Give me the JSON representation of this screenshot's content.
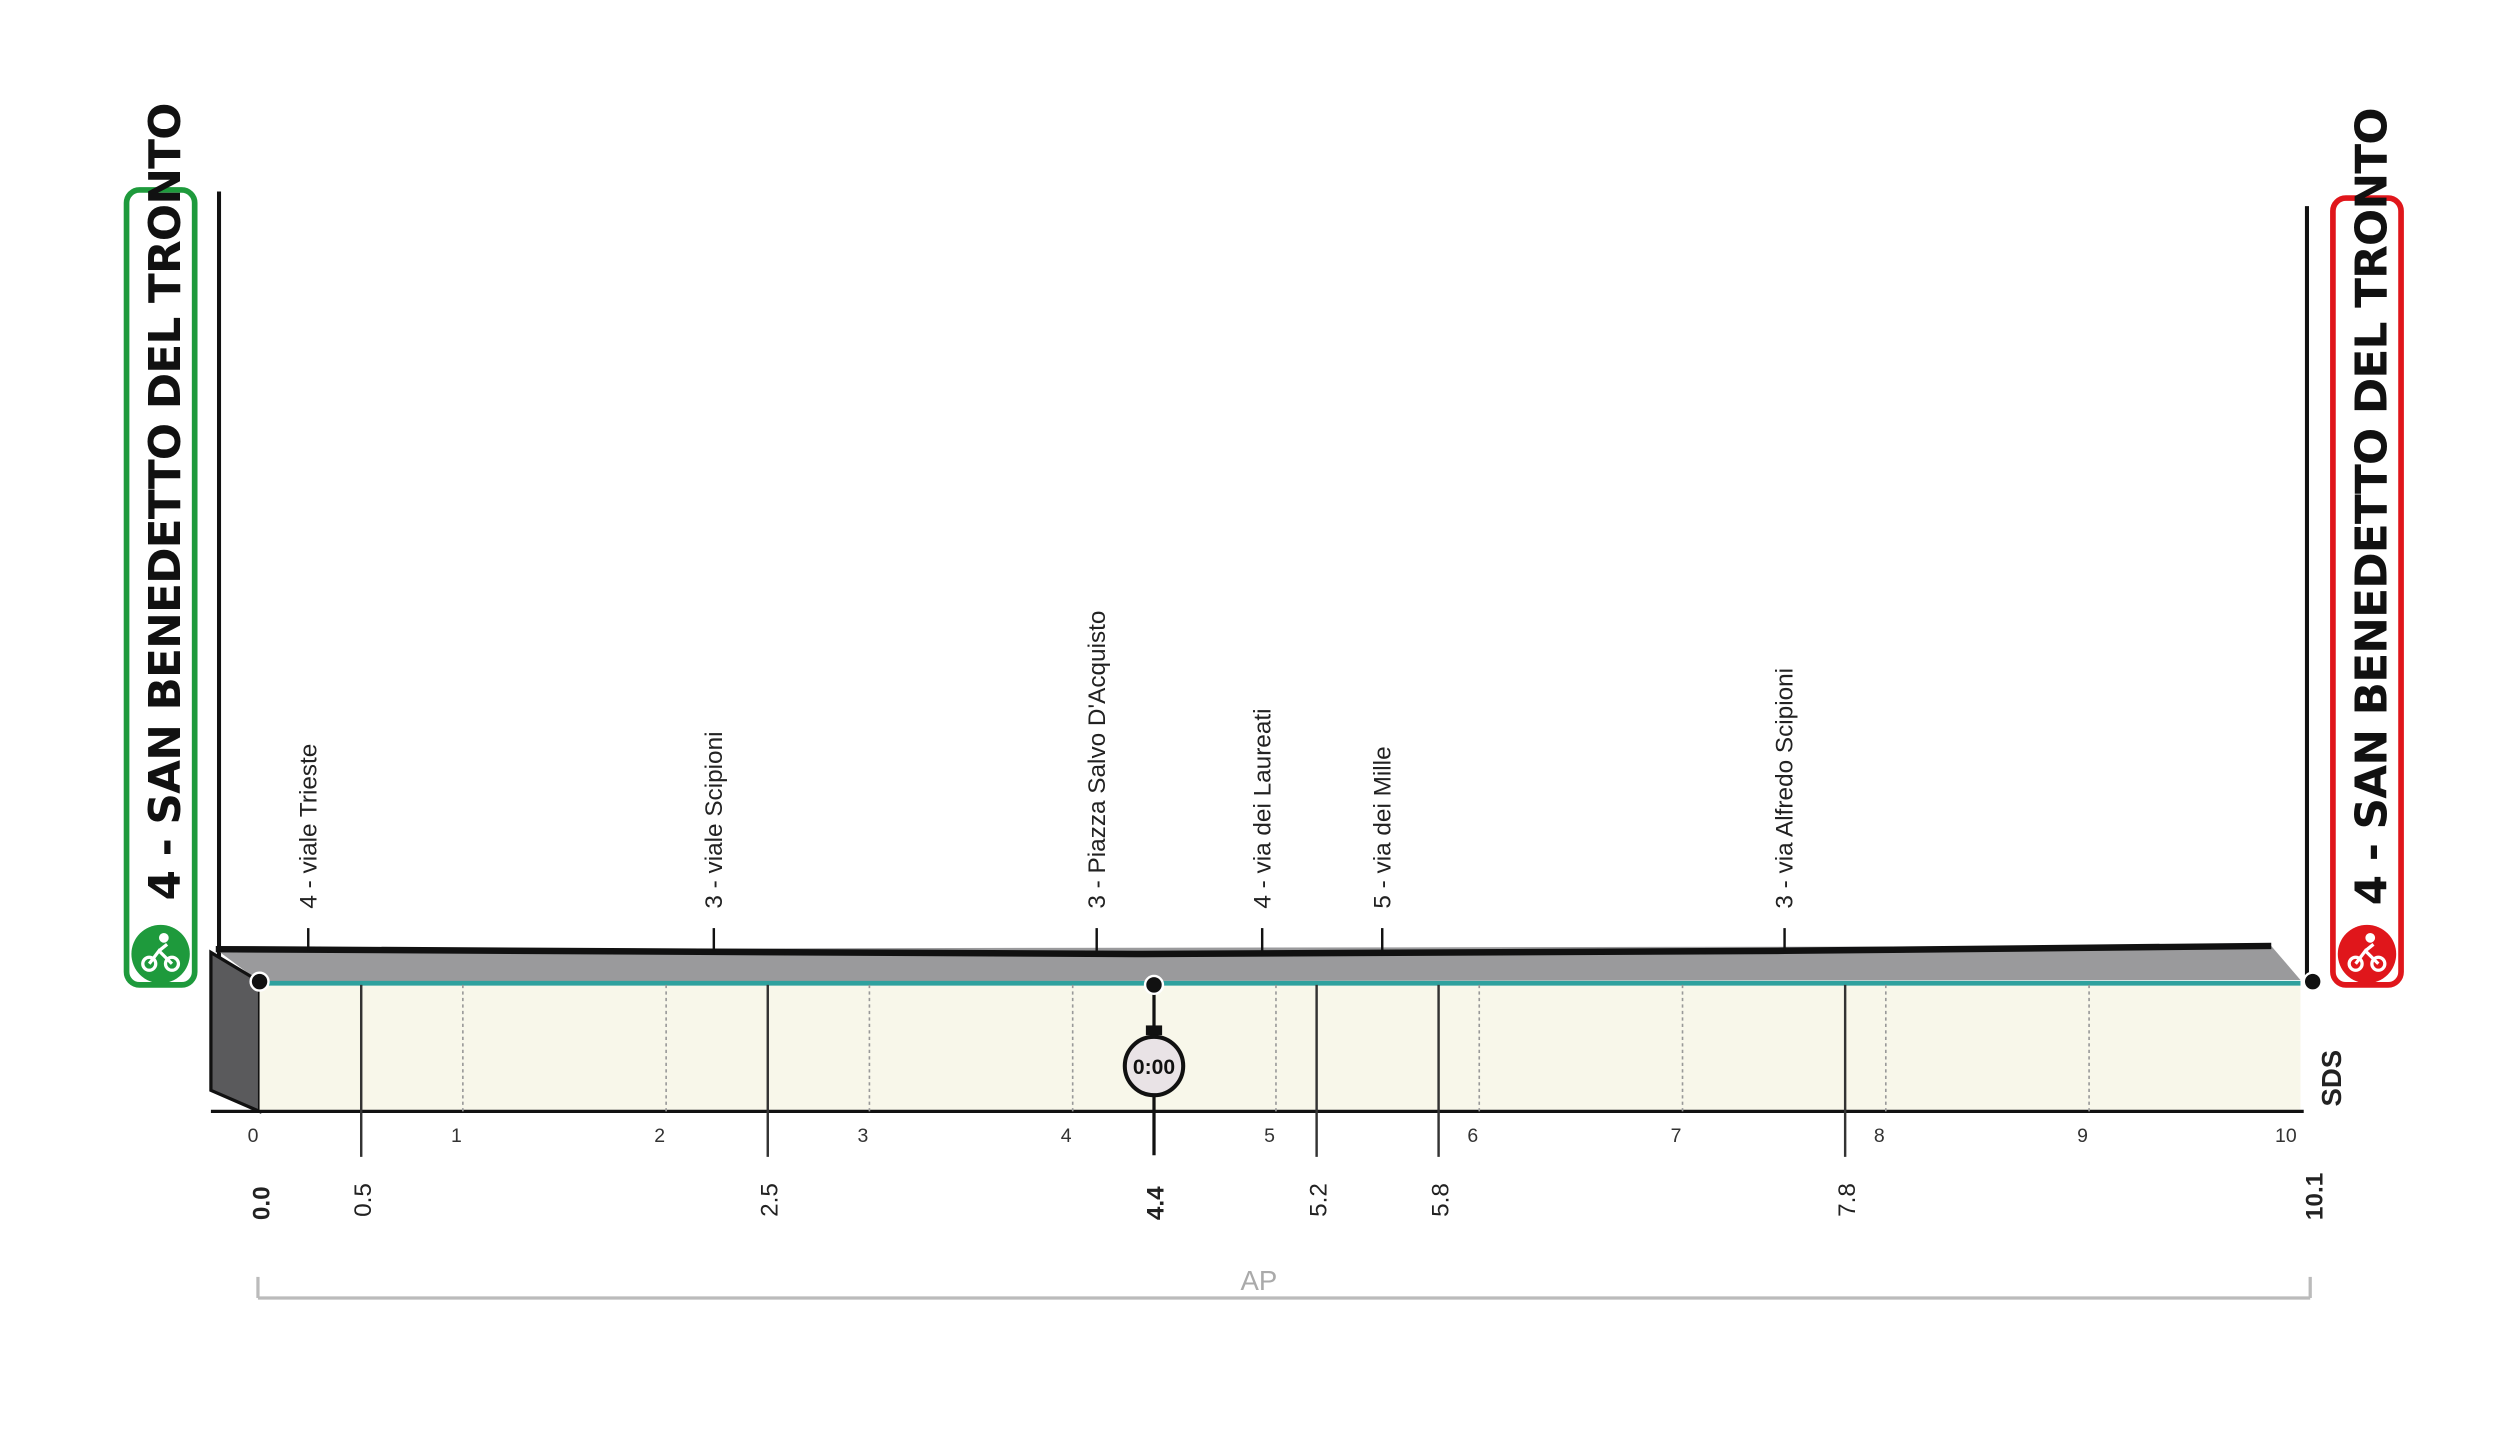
{
  "start": {
    "label": "4 - SAN BENEDETTO DEL TRONTO"
  },
  "finish": {
    "label": "4 - SAN BENEDETTO DEL TRONTO"
  },
  "waypoints": [
    {
      "label": "4 - viale Trieste"
    },
    {
      "label": "3 - viale Scipioni"
    },
    {
      "label": "3 - Piazza Salvo D'Acquisto"
    },
    {
      "label": "4 - via dei Laureati"
    },
    {
      "label": "5 - via dei Mille"
    },
    {
      "label": "3 - via Alfredo Scipioni"
    }
  ],
  "km_ticks": [
    0,
    1,
    2,
    3,
    4,
    5,
    6,
    7,
    8,
    9,
    10
  ],
  "distance_marks": [
    {
      "value": 0,
      "label": "0.0"
    },
    {
      "value": 0.5,
      "label": "0.5"
    },
    {
      "value": 2.5,
      "label": "2.5"
    },
    {
      "value": 4.4,
      "label": "4.4"
    },
    {
      "value": 5.2,
      "label": "5.2"
    },
    {
      "value": 5.8,
      "label": "5.8"
    },
    {
      "value": 7.8,
      "label": "7.8"
    },
    {
      "value": 10.1,
      "label": "10.1"
    }
  ],
  "time_check": "0:00",
  "sector": "AP",
  "logo": "SDS"
}
